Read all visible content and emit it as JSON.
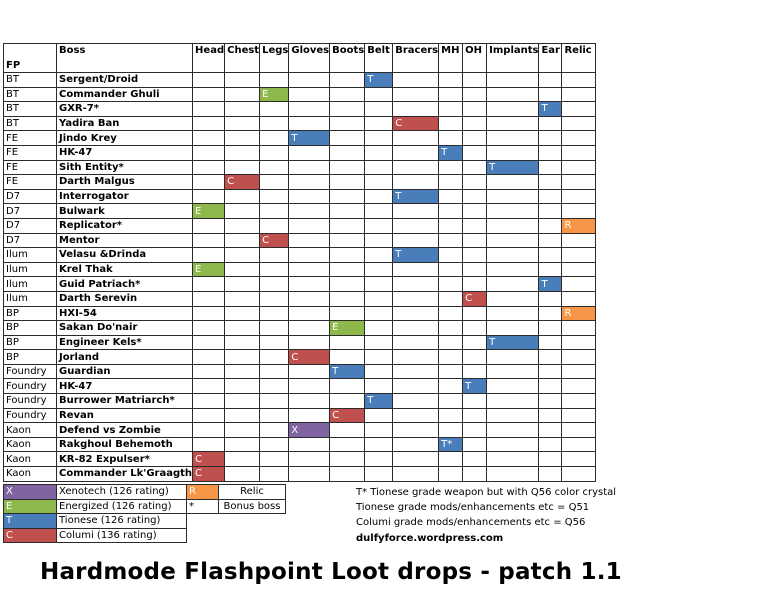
{
  "header": {
    "fp": "FP",
    "boss": "Boss",
    "columns": [
      "Head",
      "Chest",
      "Legs",
      "Gloves",
      "Boots",
      "Belt",
      "Bracers",
      "MH",
      "OH",
      "Implants",
      "Ear",
      "Relic"
    ]
  },
  "rows": [
    {
      "fp": "BT",
      "boss": "Sergent/Droid",
      "drops": [
        {
          "col": 5,
          "code": "T"
        }
      ]
    },
    {
      "fp": "BT",
      "boss": "Commander Ghuli",
      "drops": [
        {
          "col": 2,
          "code": "E"
        }
      ]
    },
    {
      "fp": "BT",
      "boss": "GXR-7*",
      "drops": [
        {
          "col": 10,
          "code": "T"
        }
      ]
    },
    {
      "fp": "BT",
      "boss": "Yadira Ban",
      "drops": [
        {
          "col": 6,
          "code": "C"
        }
      ]
    },
    {
      "fp": "FE",
      "boss": "Jindo Krey",
      "drops": [
        {
          "col": 3,
          "code": "T"
        }
      ]
    },
    {
      "fp": "FE",
      "boss": "HK-47",
      "drops": [
        {
          "col": 7,
          "code": "T"
        }
      ]
    },
    {
      "fp": "FE",
      "boss": "Sith Entity*",
      "drops": [
        {
          "col": 9,
          "code": "T"
        }
      ]
    },
    {
      "fp": "FE",
      "boss": "Darth Malgus",
      "drops": [
        {
          "col": 1,
          "code": "C"
        }
      ]
    },
    {
      "fp": "D7",
      "boss": "Interrogator",
      "drops": [
        {
          "col": 6,
          "code": "T"
        }
      ]
    },
    {
      "fp": "D7",
      "boss": "Bulwark",
      "drops": [
        {
          "col": 0,
          "code": "E"
        }
      ]
    },
    {
      "fp": "D7",
      "boss": "Replicator*",
      "drops": [
        {
          "col": 11,
          "code": "R"
        }
      ]
    },
    {
      "fp": "D7",
      "boss": "Mentor",
      "drops": [
        {
          "col": 2,
          "code": "C"
        }
      ]
    },
    {
      "fp": "Ilum",
      "boss": "Velasu &Drinda",
      "drops": [
        {
          "col": 6,
          "code": "T"
        }
      ]
    },
    {
      "fp": "Ilum",
      "boss": "Krel Thak",
      "drops": [
        {
          "col": 0,
          "code": "E"
        }
      ]
    },
    {
      "fp": "Ilum",
      "boss": "Guid Patriach*",
      "drops": [
        {
          "col": 10,
          "code": "T"
        }
      ]
    },
    {
      "fp": "Ilum",
      "boss": "Darth Serevin",
      "drops": [
        {
          "col": 8,
          "code": "C"
        }
      ]
    },
    {
      "fp": "BP",
      "boss": "HXI-54",
      "drops": [
        {
          "col": 11,
          "code": "R"
        }
      ]
    },
    {
      "fp": "BP",
      "boss": "Sakan Do'nair",
      "drops": [
        {
          "col": 4,
          "code": "E"
        }
      ]
    },
    {
      "fp": "BP",
      "boss": "Engineer Kels*",
      "drops": [
        {
          "col": 9,
          "code": "T"
        }
      ]
    },
    {
      "fp": "BP",
      "boss": "Jorland",
      "drops": [
        {
          "col": 3,
          "code": "C"
        }
      ]
    },
    {
      "fp": "Foundry",
      "boss": "Guardian",
      "drops": [
        {
          "col": 4,
          "code": "T"
        }
      ]
    },
    {
      "fp": "Foundry",
      "boss": "HK-47",
      "drops": [
        {
          "col": 8,
          "code": "T"
        }
      ]
    },
    {
      "fp": "Foundry",
      "boss": "Burrower Matriarch*",
      "drops": [
        {
          "col": 5,
          "code": "T"
        }
      ]
    },
    {
      "fp": "Foundry",
      "boss": "Revan",
      "drops": [
        {
          "col": 4,
          "code": "C"
        }
      ]
    },
    {
      "fp": "Kaon",
      "boss": "Defend vs Zombie",
      "drops": [
        {
          "col": 3,
          "code": "X"
        }
      ]
    },
    {
      "fp": "Kaon",
      "boss": "Rakghoul Behemoth",
      "drops": [
        {
          "col": 7,
          "code": "T*"
        }
      ]
    },
    {
      "fp": "Kaon",
      "boss": "KR-82 Expulser*",
      "drops": [
        {
          "col": 0,
          "code": "C"
        }
      ]
    },
    {
      "fp": "Kaon",
      "boss": "Commander Lk'Graagth",
      "drops": [
        {
          "col": 0,
          "code": "C"
        }
      ]
    }
  ],
  "legend": [
    {
      "code": "X",
      "label": "Xenotech (126 rating)",
      "extra_code": "R",
      "extra_label": "Relic"
    },
    {
      "code": "E",
      "label": "Energized (126 rating)",
      "extra_code": "*",
      "extra_label": "Bonus boss"
    },
    {
      "code": "T",
      "label": "Tionese (126 rating)"
    },
    {
      "code": "C",
      "label": "Columi (136 rating)"
    }
  ],
  "notes": [
    "T* Tionese grade weapon but with Q56 color crystal",
    "Tionese grade mods/enhancements etc = Q51",
    "Columi grade mods/enhancements etc = Q56"
  ],
  "site": "dulfyforce.wordpress.com",
  "caption": "Hardmode Flashpoint Loot drops - patch 1.1",
  "colors": {
    "X": "#8064a2",
    "E": "#8fb84c",
    "T": "#4a7ebb",
    "C": "#c0504d",
    "R": "#f79646",
    "border": "#2b2b2b"
  }
}
